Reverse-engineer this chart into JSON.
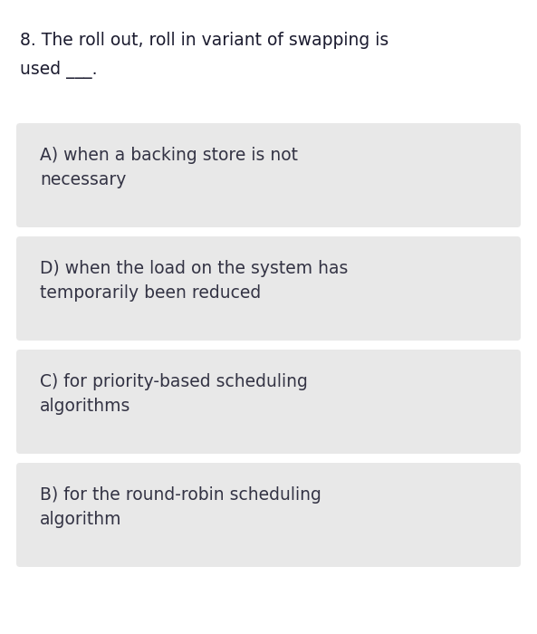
{
  "question_line1": "8. The roll out, roll in variant of swapping is",
  "question_line2": "used ___.",
  "options": [
    "A) when a backing store is not\nnecessary",
    "D) when the load on the system has\ntemporarily been reduced",
    "C) for priority-based scheduling\nalgorithms",
    "B) for the round-robin scheduling\nalgorithm"
  ],
  "bg_color": "#ffffff",
  "option_bg_color": "#e8e8e8",
  "question_color": "#1a1a2e",
  "option_text_color": "#333344",
  "question_fontsize": 13.5,
  "option_fontsize": 13.5,
  "font_family": "DejaVu Sans",
  "fig_width": 5.93,
  "fig_height": 7.0,
  "dpi": 100
}
